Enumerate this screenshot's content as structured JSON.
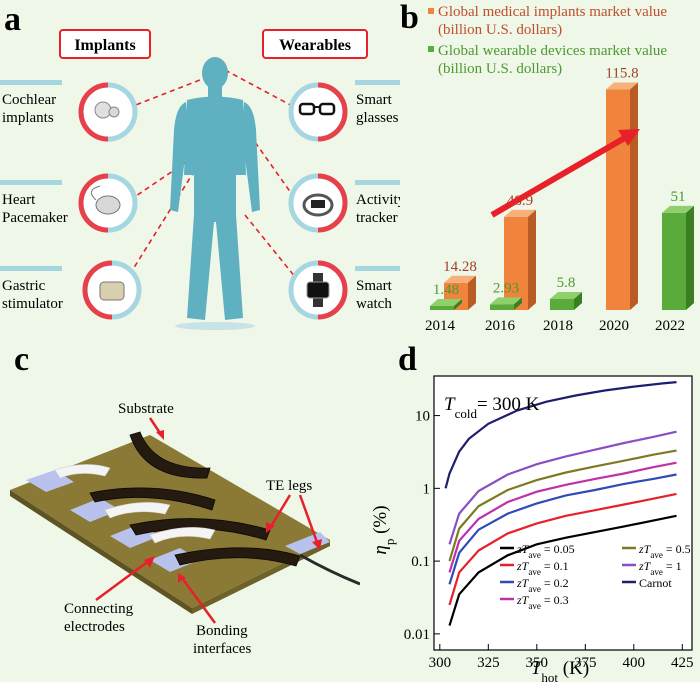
{
  "panel_a": {
    "letter": "a",
    "implants_title": "Implants",
    "wearables_title": "Wearables",
    "implants": [
      {
        "label1": "Cochlear",
        "label2": "implants"
      },
      {
        "label1": "Heart",
        "label2": "Pacemaker"
      },
      {
        "label1": "Gastric",
        "label2": "stimulator"
      }
    ],
    "wearables": [
      {
        "label1": "Smart",
        "label2": "glasses"
      },
      {
        "label1": "Activity",
        "label2": "tracker"
      },
      {
        "label1": "Smart",
        "label2": "watch"
      }
    ]
  },
  "panel_c": {
    "letter": "c",
    "substrate": "Substrate",
    "te_legs": "TE legs",
    "connecting1": "Connecting",
    "connecting2": "electrodes",
    "bonding1": "Bonding",
    "bonding2": "interfaces"
  },
  "colors": {
    "implant_bar": "#f0843c",
    "wearable_bar": "#5bab3c",
    "implant_text": "#a0402c",
    "wearable_text": "#4e9a30",
    "accent_red": "#e8202a"
  },
  "chart_data": [
    {
      "type": "bar",
      "panel_letter": "b",
      "categories": [
        "2014",
        "2016",
        "2018",
        "2020",
        "2022"
      ],
      "series": [
        {
          "name": "Global medical implants market value",
          "name_line2": "(billion U.S. dollars)",
          "values": [
            14.28,
            48.9,
            null,
            115.8,
            null
          ],
          "labels": [
            "14.28",
            "48.9",
            "",
            "115.8",
            ""
          ]
        },
        {
          "name": "Global wearable devices market value",
          "name_line2": "(billion U.S. dollars)",
          "values": [
            1.48,
            2.93,
            5.8,
            null,
            51
          ],
          "labels": [
            "1.48",
            "2.93",
            "5.8",
            "",
            "51"
          ]
        }
      ],
      "ylim": [
        0,
        125
      ]
    },
    {
      "type": "line",
      "panel_letter": "d",
      "title": "T_cold = 300 K",
      "title_main": "T",
      "title_sub": "cold",
      "title_rest": "= 300 K",
      "xlabel_main": "T",
      "xlabel_sub": "hot",
      "xlabel_rest": " (K)",
      "ylabel_main": "η",
      "ylabel_sub": "p",
      "ylabel_rest": " (%)",
      "xlim": [
        297,
        430
      ],
      "ylim": [
        0.006,
        35
      ],
      "yscale": "log",
      "xticks": [
        300,
        325,
        350,
        375,
        400,
        425
      ],
      "xtick_labels": [
        "300",
        "325",
        "350",
        "375",
        "400",
        "425"
      ],
      "yticks": [
        0.01,
        0.1,
        1,
        10
      ],
      "ytick_labels": [
        "0.01",
        "0.1",
        "1",
        "10"
      ],
      "series": [
        {
          "name": "zT_ave = 0.05",
          "legend_pre": "zT",
          "legend_sub": "ave",
          "legend_post": " = 0.05",
          "color": "#000000",
          "x": [
            305,
            310,
            320,
            335,
            350,
            365,
            380,
            395,
            410,
            422
          ],
          "y": [
            0.013,
            0.035,
            0.07,
            0.12,
            0.17,
            0.21,
            0.25,
            0.3,
            0.36,
            0.42
          ]
        },
        {
          "name": "zT_ave = 0.1",
          "legend_pre": "zT",
          "legend_sub": "ave",
          "legend_post": " = 0.1",
          "color": "#e8202a",
          "x": [
            305,
            310,
            320,
            335,
            350,
            365,
            380,
            395,
            410,
            422
          ],
          "y": [
            0.025,
            0.07,
            0.14,
            0.24,
            0.33,
            0.42,
            0.5,
            0.6,
            0.72,
            0.84
          ]
        },
        {
          "name": "zT_ave = 0.2",
          "legend_pre": "zT",
          "legend_sub": "ave",
          "legend_post": " = 0.2",
          "color": "#2e4bb8",
          "x": [
            305,
            310,
            320,
            335,
            350,
            365,
            380,
            395,
            410,
            422
          ],
          "y": [
            0.048,
            0.13,
            0.27,
            0.45,
            0.62,
            0.8,
            0.95,
            1.15,
            1.35,
            1.55
          ]
        },
        {
          "name": "zT_ave = 0.3",
          "legend_pre": "zT",
          "legend_sub": "ave",
          "legend_post": " = 0.3",
          "color": "#c030a8",
          "x": [
            305,
            310,
            320,
            335,
            350,
            365,
            380,
            395,
            410,
            422
          ],
          "y": [
            0.07,
            0.19,
            0.38,
            0.65,
            0.9,
            1.12,
            1.35,
            1.6,
            1.95,
            2.25
          ]
        },
        {
          "name": "zT_ave = 0.5",
          "legend_pre": "zT",
          "legend_sub": "ave",
          "legend_post": " = 0.5",
          "color": "#7d7a24",
          "x": [
            305,
            310,
            320,
            335,
            350,
            365,
            380,
            395,
            410,
            422
          ],
          "y": [
            0.1,
            0.28,
            0.57,
            0.95,
            1.3,
            1.65,
            2.0,
            2.4,
            2.9,
            3.3
          ]
        },
        {
          "name": "zT_ave = 1",
          "legend_pre": "zT",
          "legend_sub": "ave",
          "legend_post": " = 1",
          "color": "#8a4fc0",
          "x": [
            305,
            310,
            320,
            335,
            350,
            365,
            380,
            395,
            410,
            422
          ],
          "y": [
            0.17,
            0.45,
            0.92,
            1.55,
            2.15,
            2.75,
            3.4,
            4.2,
            5.1,
            6.0
          ]
        },
        {
          "name": "Carnot",
          "legend_pre": "Carnot",
          "legend_sub": "",
          "legend_post": "",
          "color": "#1d1f6e",
          "x": [
            303,
            305,
            310,
            315,
            325,
            340,
            355,
            370,
            385,
            400,
            415,
            422
          ],
          "y": [
            1.0,
            1.6,
            3.2,
            4.8,
            7.7,
            11.8,
            15.5,
            18.9,
            22.1,
            25.0,
            27.7,
            28.9
          ]
        }
      ]
    }
  ]
}
